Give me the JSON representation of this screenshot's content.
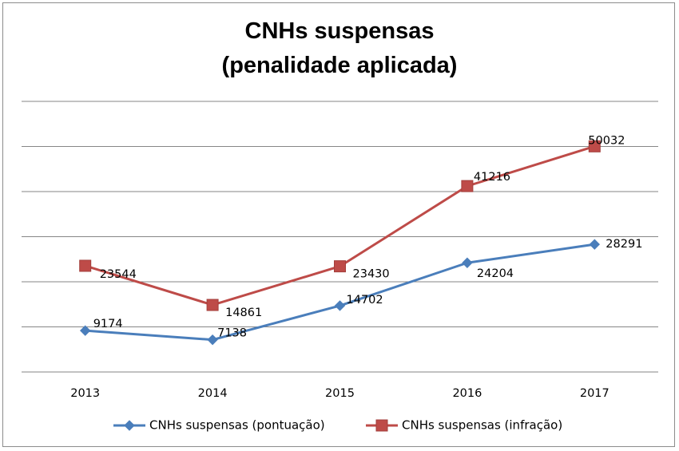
{
  "chart_data": {
    "type": "line",
    "title": "CNHs suspensas",
    "subtitle": "(penalidade aplicada)",
    "categories": [
      "2013",
      "2014",
      "2015",
      "2016",
      "2017"
    ],
    "series": [
      {
        "name": "CNHs suspensas (pontuação)",
        "values": [
          9174,
          7138,
          14702,
          24204,
          28291
        ],
        "color": "#4a7ebb",
        "marker": "diamond"
      },
      {
        "name": "CNHs suspensas (infração)",
        "values": [
          23544,
          14861,
          23430,
          41216,
          50032
        ],
        "color": "#be4b48",
        "marker": "square"
      }
    ],
    "ylim": [
      0,
      60000
    ],
    "grid": true,
    "legend": "bottom"
  }
}
